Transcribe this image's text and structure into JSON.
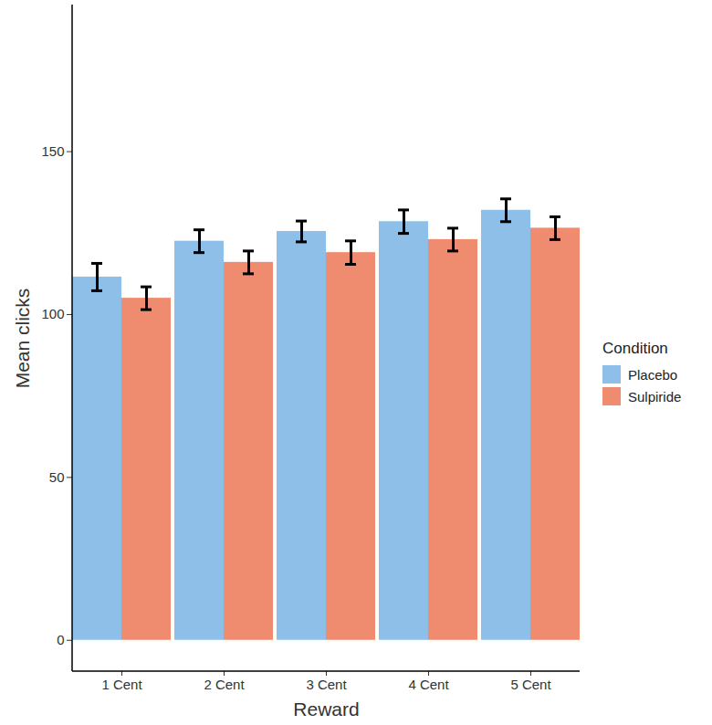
{
  "chart_data": {
    "type": "bar",
    "x_label": "Reward",
    "y_label": "Mean clicks",
    "categories": [
      "1 Cent",
      "2 Cent",
      "3 Cent",
      "4 Cent",
      "5 Cent"
    ],
    "series": [
      {
        "name": "Placebo",
        "color": "#8dbfe8",
        "values": [
          111.5,
          122.5,
          125.5,
          128.5,
          132
        ],
        "error": [
          4.2,
          3.5,
          3.2,
          3.6,
          3.5
        ]
      },
      {
        "name": "Sulpiride",
        "color": "#ef8b6f",
        "values": [
          105,
          116,
          119,
          123,
          126.5
        ],
        "error": [
          3.5,
          3.5,
          3.6,
          3.5,
          3.5
        ]
      }
    ],
    "ylim": [
      -9.6,
      195
    ],
    "yticks": [
      0,
      50,
      100,
      150
    ],
    "legend": "right",
    "legend_title": "Condition"
  }
}
